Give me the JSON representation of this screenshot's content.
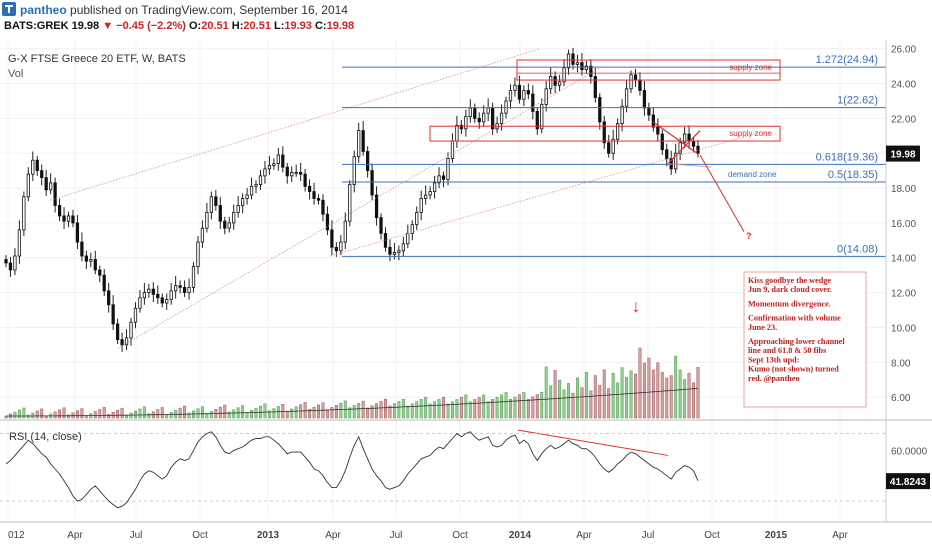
{
  "header": {
    "user": "pantheo",
    "published_text": "published on TradingView.com, September 16, 2014",
    "symbol": "BATS:GREK",
    "last": "19.98",
    "change": "−0.45 (−2.2%)",
    "o_label": "O:",
    "o_val": "20.51",
    "h_label": "H:",
    "h_val": "20.51",
    "l_label": "L:",
    "l_val": "19.93",
    "c_label": "C:",
    "c_val": "19.98"
  },
  "chart_data": {
    "type": "candlestick",
    "title": "G-X FTSE Greece 20 ETF, W, BATS",
    "volume_label": "Vol",
    "price_axis": {
      "ticks": [
        6,
        8,
        10,
        12,
        14,
        16,
        18,
        20,
        22,
        24,
        26
      ],
      "tick_labels": [
        "6.00",
        "8.00",
        "10.00",
        "12.00",
        "14.00",
        "16.00",
        "18.00",
        "20.00",
        "22.00",
        "24.00",
        "26.00"
      ],
      "range": [
        4.8,
        26.5
      ]
    },
    "time_axis": {
      "labels": [
        "012",
        "Apr",
        "Jul",
        "Oct",
        "2013",
        "Apr",
        "Jul",
        "Oct",
        "2014",
        "Apr",
        "Jul",
        "Oct",
        "2015",
        "Apr"
      ],
      "dates": [
        "2012-01",
        "2012-04",
        "2012-07",
        "2012-10",
        "2013-01",
        "2013-04",
        "2013-07",
        "2013-10",
        "2014-01",
        "2014-04",
        "2014-07",
        "2014-10",
        "2015-01",
        "2015-04"
      ]
    },
    "last_price_label": "19.98",
    "close_prices": [
      13.7,
      13.3,
      14.1,
      15.6,
      17.5,
      18.8,
      19.6,
      19.0,
      18.6,
      17.9,
      18.3,
      17.0,
      16.4,
      16.1,
      16.4,
      16.0,
      14.9,
      14.1,
      13.8,
      13.9,
      13.3,
      13.0,
      12.1,
      11.3,
      10.2,
      9.3,
      9.0,
      9.4,
      10.3,
      11.1,
      11.7,
      12.0,
      12.2,
      11.9,
      11.7,
      11.4,
      11.6,
      12.1,
      12.4,
      12.3,
      12.0,
      12.3,
      13.5,
      14.9,
      15.7,
      16.6,
      17.5,
      17.0,
      16.1,
      15.7,
      16.0,
      16.6,
      17.0,
      17.4,
      17.6,
      18.1,
      18.2,
      18.7,
      19.1,
      19.3,
      19.4,
      19.9,
      19.2,
      18.7,
      18.9,
      18.9,
      18.8,
      18.1,
      17.8,
      17.4,
      17.3,
      16.5,
      15.6,
      14.6,
      14.4,
      14.9,
      16.1,
      18.2,
      19.8,
      21.3,
      20.1,
      19.0,
      17.6,
      16.3,
      15.4,
      14.6,
      14.2,
      14.3,
      14.4,
      14.8,
      15.4,
      15.9,
      16.6,
      17.4,
      17.6,
      17.8,
      18.3,
      18.7,
      18.5,
      19.7,
      20.7,
      21.6,
      21.4,
      22.1,
      22.6,
      22.0,
      21.8,
      22.3,
      22.6,
      21.4,
      21.7,
      22.3,
      23.0,
      23.6,
      23.9,
      23.1,
      23.6,
      23.4,
      22.4,
      21.4,
      22.8,
      23.7,
      24.4,
      23.9,
      24.1,
      24.9,
      25.7,
      25.1,
      25.2,
      24.8,
      25.0,
      24.4,
      23.2,
      21.8,
      20.6,
      20.0,
      20.8,
      21.7,
      22.7,
      23.7,
      24.5,
      24.2,
      23.6,
      22.6,
      22.2,
      21.5,
      21.1,
      20.2,
      19.7,
      19.1,
      20.0,
      20.6,
      21.1,
      20.7,
      20.4,
      20.0
    ],
    "volume_label_ticks": [],
    "rsi": {
      "label": "RSI (14, close)",
      "ticks": [
        60
      ],
      "tick_labels": [
        "60.0000"
      ],
      "last_value_label": "41.8243",
      "values": [
        52,
        54,
        57,
        60,
        63,
        66,
        64,
        61,
        58,
        56,
        52,
        49,
        46,
        42,
        38,
        33,
        30,
        31,
        34,
        37,
        39,
        36,
        33,
        30,
        28,
        26,
        27,
        29,
        33,
        37,
        42,
        46,
        48,
        47,
        45,
        43,
        45,
        50,
        53,
        55,
        54,
        55,
        60,
        65,
        68,
        70,
        71,
        68,
        63,
        59,
        58,
        60,
        61,
        62,
        64,
        66,
        67,
        67,
        68,
        68,
        66,
        64,
        61,
        58,
        59,
        59,
        59,
        56,
        53,
        49,
        48,
        45,
        41,
        38,
        38,
        42,
        48,
        56,
        63,
        68,
        61,
        55,
        49,
        45,
        42,
        38,
        37,
        38,
        39,
        42,
        46,
        49,
        52,
        55,
        56,
        57,
        60,
        62,
        61,
        64,
        67,
        70,
        68,
        70,
        71,
        68,
        66,
        67,
        68,
        63,
        62,
        63,
        66,
        68,
        69,
        64,
        66,
        64,
        58,
        54,
        58,
        61,
        63,
        61,
        62,
        64,
        66,
        64,
        63,
        61,
        61,
        59,
        56,
        52,
        49,
        47,
        49,
        52,
        54,
        57,
        59,
        58,
        56,
        54,
        52,
        50,
        49,
        47,
        45,
        43,
        47,
        49,
        51,
        50,
        48,
        42
      ]
    },
    "fib_levels": [
      {
        "label": "1.272(24.94)",
        "value": 24.94
      },
      {
        "label": "1(22.62)",
        "value": 22.62
      },
      {
        "label": "0.618(19.36)",
        "value": 19.36
      },
      {
        "label": "0.5(18.35)",
        "value": 18.35
      },
      {
        "label": "0(14.08)",
        "value": 14.08
      }
    ],
    "zones": [
      {
        "label": "supply zone",
        "top": 25.35,
        "bottom": 24.2
      },
      {
        "label": "supply zone",
        "top": 21.55,
        "bottom": 20.7
      },
      {
        "label": "demand zone"
      }
    ],
    "question_mark": "?",
    "down_arrow": "↓",
    "note_lines": [
      "Kiss goodbye the wedge",
      "Jun 9, dark cloud cover.",
      "",
      "Momentum divergence.",
      "",
      "Confirmation with volume",
      "June 23.",
      "",
      "Approaching lower channel",
      "line and 61.8 & 50 fibs",
      "Sept 13th upd:",
      "Kumo (not shown) turned",
      "red. @pantheo"
    ],
    "colors": {
      "up": "#5fb15f",
      "down": "#b05050",
      "volume_up": "#8fd08f",
      "volume_down": "#d8a0a0",
      "fib": "#3d6fbf",
      "annotation": "#e03030"
    }
  }
}
